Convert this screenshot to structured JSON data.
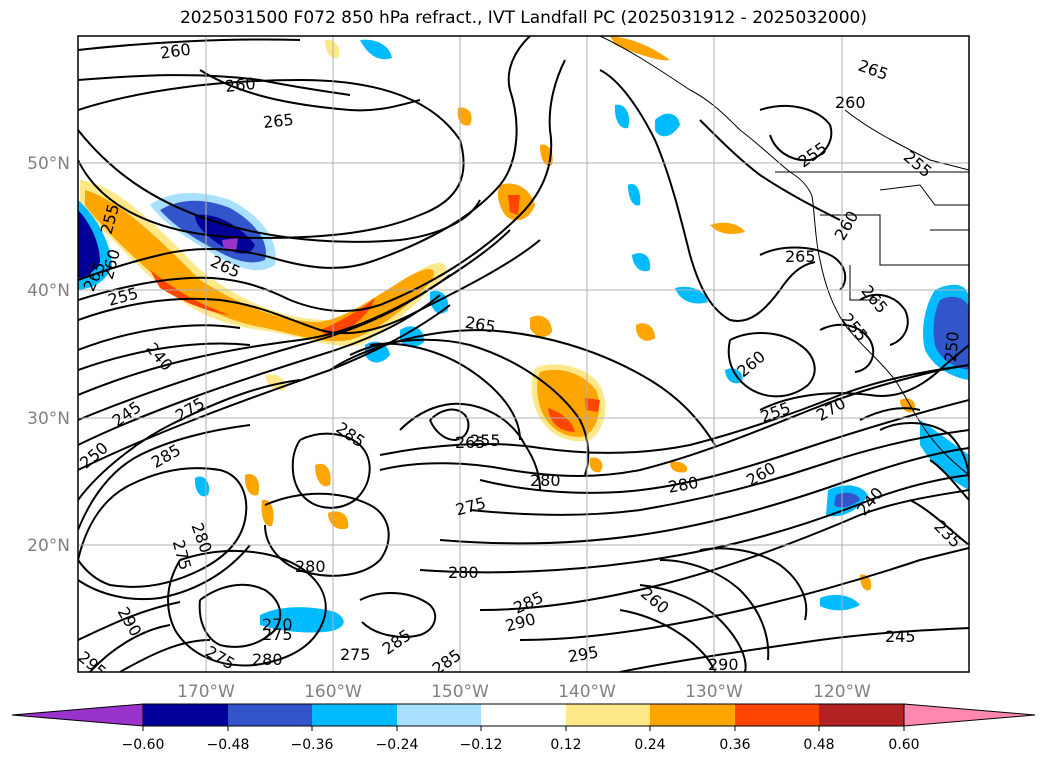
{
  "title": "2025031500 F072 850 hPa refract., IVT Landfall PC (2025031912 - 2025032000)",
  "lat_labels": [
    "50°N",
    "40°N",
    "30°N",
    "20°N"
  ],
  "lon_labels": [
    "170°W",
    "160°W",
    "150°W",
    "140°W",
    "130°W",
    "120°W"
  ],
  "contour_labels": [
    "260",
    "260",
    "265",
    "265",
    "260",
    "255",
    "260",
    "265",
    "255",
    "260",
    "255",
    "265",
    "240",
    "245",
    "250",
    "275",
    "285",
    "265",
    "285",
    "265",
    "255",
    "280",
    "275",
    "280",
    "260",
    "240",
    "280",
    "275",
    "280",
    "280",
    "285",
    "270",
    "275",
    "275",
    "280",
    "275",
    "285",
    "285",
    "290",
    "295",
    "290",
    "245",
    "295",
    "290",
    "235",
    "260",
    "255",
    "270",
    "265",
    "255",
    "260",
    "265",
    "250",
    "255"
  ],
  "colorbar": {
    "colors": [
      "#9933cc",
      "#000099",
      "#3355cc",
      "#00bbff",
      "#aae0ff",
      "#ffffff",
      "#ffe88a",
      "#ffa500",
      "#ff4500",
      "#b22222",
      "#ff88b0"
    ],
    "tick_labels": [
      "−0.60",
      "−0.48",
      "−0.36",
      "−0.24",
      "−0.12",
      "0.12",
      "0.24",
      "0.36",
      "0.48",
      "0.60"
    ]
  }
}
